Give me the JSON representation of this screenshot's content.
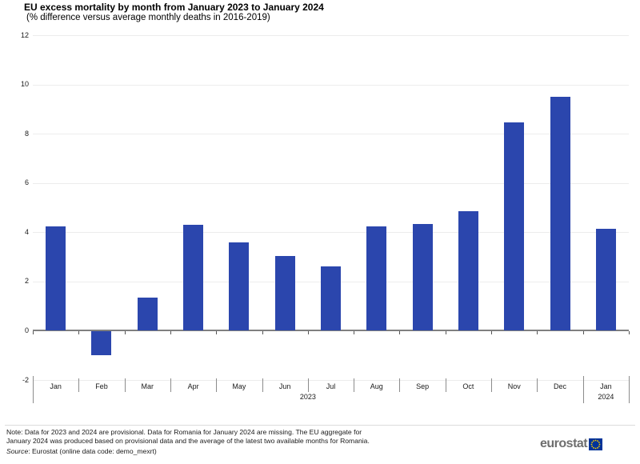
{
  "header": {
    "title": "EU excess mortality by month from January 2023 to January 2024",
    "subtitle": "(% difference versus average monthly deaths in 2016-2019)"
  },
  "chart_data": {
    "type": "bar",
    "title": "EU excess mortality by month from January 2023 to January 2024",
    "subtitle": "(% difference versus average monthly deaths in 2016-2019)",
    "categories": [
      "Jan",
      "Feb",
      "Mar",
      "Apr",
      "May",
      "Jun",
      "Jul",
      "Aug",
      "Sep",
      "Oct",
      "Nov",
      "Dec",
      "Jan"
    ],
    "values": [
      4.25,
      -0.95,
      1.35,
      4.3,
      3.6,
      3.05,
      2.6,
      4.25,
      4.35,
      4.85,
      8.45,
      9.5,
      4.15
    ],
    "year_groups": [
      {
        "label": "2023",
        "start": 0,
        "end": 12
      },
      {
        "label": "2024",
        "start": 12,
        "end": 13
      }
    ],
    "xlabel": "",
    "ylabel": "",
    "ylim": [
      -2,
      12
    ],
    "yticks": [
      12,
      10,
      8,
      6,
      4,
      2,
      0,
      -2
    ],
    "grid": true,
    "legend": false,
    "bar_color": "#2b46ad",
    "gridline_color": "#ececec",
    "zero_line_color": "#808080"
  },
  "footer": {
    "note_lines": [
      "Note: Data for 2023 and 2024 are provisional. Data for Romania for January 2024 are missing. The EU aggregate for",
      "January 2024 was produced based on provisional data and the average of the latest two available months for Romania."
    ],
    "source_label": "Source",
    "source_rest": ": Eurostat (online data code: demo_mexrt)",
    "logo_text": "eurostat",
    "logo_flag_blue": "#003399",
    "logo_star_yellow": "#ffcc00"
  }
}
